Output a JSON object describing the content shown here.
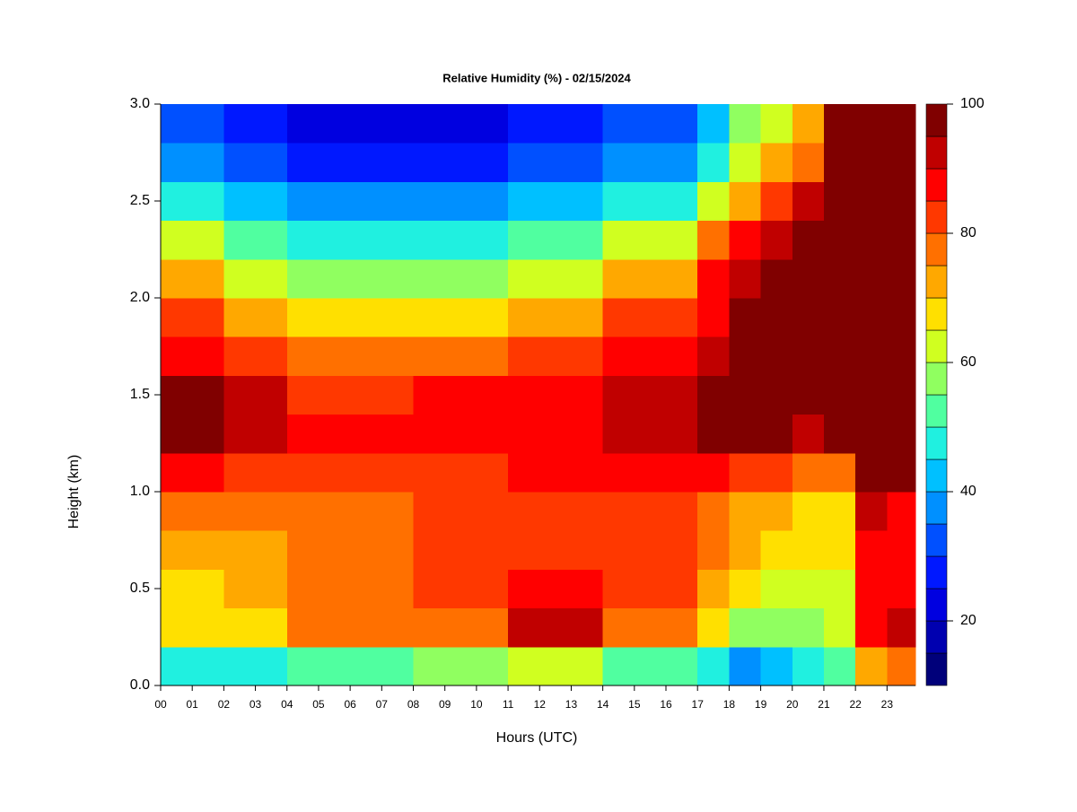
{
  "chart_data": {
    "type": "heatmap",
    "title": "Relative Humidity (%) - 02/15/2024",
    "x_label": "Hours (UTC)",
    "y_label": "Height (km)",
    "xlim": [
      0,
      23.9
    ],
    "ylim": [
      0,
      3
    ],
    "xticks": [
      {
        "value": 0,
        "label": "00"
      },
      {
        "value": 1,
        "label": "01"
      },
      {
        "value": 2,
        "label": "02"
      },
      {
        "value": 3,
        "label": "03"
      },
      {
        "value": 4,
        "label": "04"
      },
      {
        "value": 5,
        "label": "05"
      },
      {
        "value": 6,
        "label": "06"
      },
      {
        "value": 7,
        "label": "07"
      },
      {
        "value": 8,
        "label": "08"
      },
      {
        "value": 9,
        "label": "09"
      },
      {
        "value": 10,
        "label": "10"
      },
      {
        "value": 11,
        "label": "11"
      },
      {
        "value": 12,
        "label": "12"
      },
      {
        "value": 13,
        "label": "13"
      },
      {
        "value": 14,
        "label": "14"
      },
      {
        "value": 15,
        "label": "15"
      },
      {
        "value": 16,
        "label": "16"
      },
      {
        "value": 17,
        "label": "17"
      },
      {
        "value": 18,
        "label": "18"
      },
      {
        "value": 19,
        "label": "19"
      },
      {
        "value": 20,
        "label": "20"
      },
      {
        "value": 21,
        "label": "21"
      },
      {
        "value": 22,
        "label": "22"
      },
      {
        "value": 23,
        "label": "23"
      }
    ],
    "yticks": [
      {
        "value": 0,
        "label": "0.0"
      },
      0.5,
      {
        "value": 1,
        "label": "1.0"
      },
      1.5,
      {
        "value": 2,
        "label": "2.0"
      },
      2.5,
      {
        "value": 3,
        "label": "3.0"
      }
    ],
    "x": [
      0,
      1,
      2,
      3,
      4,
      5,
      6,
      7,
      8,
      9,
      10,
      11,
      12,
      13,
      14,
      15,
      16,
      17,
      18,
      19,
      20,
      21,
      22,
      23
    ],
    "y": [
      0.1,
      0.3,
      0.5,
      0.7,
      0.9,
      1.1,
      1.3,
      1.5,
      1.7,
      1.9,
      2.1,
      2.3,
      2.5,
      2.7,
      2.9
    ],
    "z": [
      [
        45,
        45,
        48,
        48,
        52,
        52,
        52,
        52,
        55,
        55,
        55,
        60,
        60,
        60,
        52,
        52,
        52,
        45,
        38,
        42,
        45,
        50,
        70,
        75
      ],
      [
        65,
        65,
        68,
        68,
        75,
        75,
        75,
        75,
        78,
        78,
        78,
        90,
        90,
        90,
        78,
        78,
        78,
        65,
        58,
        58,
        55,
        60,
        85,
        90
      ],
      [
        68,
        68,
        70,
        70,
        78,
        78,
        78,
        78,
        80,
        80,
        80,
        85,
        85,
        85,
        82,
        82,
        82,
        70,
        65,
        62,
        60,
        62,
        88,
        88
      ],
      [
        70,
        70,
        72,
        72,
        76,
        76,
        76,
        76,
        80,
        80,
        80,
        82,
        82,
        82,
        82,
        82,
        82,
        75,
        70,
        68,
        65,
        65,
        88,
        85
      ],
      [
        75,
        75,
        75,
        75,
        75,
        75,
        75,
        75,
        80,
        80,
        80,
        82,
        82,
        82,
        82,
        82,
        82,
        75,
        72,
        70,
        68,
        68,
        92,
        88
      ],
      [
        85,
        85,
        82,
        82,
        80,
        80,
        80,
        80,
        82,
        82,
        82,
        85,
        85,
        85,
        86,
        86,
        86,
        85,
        82,
        80,
        75,
        75,
        95,
        95
      ],
      [
        95,
        95,
        90,
        90,
        85,
        85,
        85,
        85,
        88,
        88,
        88,
        88,
        88,
        88,
        90,
        90,
        90,
        95,
        95,
        95,
        92,
        98,
        98,
        98
      ],
      [
        95,
        95,
        90,
        90,
        82,
        82,
        82,
        82,
        85,
        85,
        85,
        88,
        88,
        88,
        90,
        90,
        90,
        95,
        98,
        98,
        98,
        98,
        98,
        98
      ],
      [
        88,
        88,
        82,
        82,
        75,
        75,
        75,
        75,
        78,
        78,
        78,
        82,
        82,
        82,
        85,
        85,
        85,
        92,
        98,
        98,
        98,
        98,
        98,
        98
      ],
      [
        80,
        80,
        72,
        72,
        65,
        65,
        65,
        65,
        68,
        68,
        68,
        72,
        72,
        72,
        80,
        80,
        80,
        88,
        95,
        98,
        98,
        98,
        98,
        98
      ],
      [
        70,
        70,
        60,
        60,
        55,
        55,
        55,
        55,
        58,
        58,
        58,
        62,
        62,
        62,
        72,
        72,
        72,
        85,
        92,
        95,
        98,
        98,
        98,
        98
      ],
      [
        60,
        60,
        50,
        50,
        45,
        45,
        45,
        45,
        48,
        48,
        48,
        50,
        50,
        50,
        60,
        60,
        60,
        75,
        85,
        90,
        95,
        98,
        98,
        98
      ],
      [
        45,
        45,
        40,
        40,
        35,
        35,
        35,
        35,
        38,
        38,
        38,
        40,
        40,
        40,
        48,
        48,
        48,
        60,
        72,
        80,
        90,
        98,
        98,
        98
      ],
      [
        35,
        35,
        30,
        30,
        25,
        25,
        25,
        25,
        28,
        28,
        28,
        30,
        30,
        30,
        38,
        38,
        38,
        48,
        60,
        70,
        78,
        98,
        98,
        98
      ],
      [
        30,
        30,
        25,
        25,
        20,
        20,
        20,
        20,
        22,
        22,
        22,
        25,
        25,
        25,
        30,
        30,
        30,
        42,
        55,
        62,
        70,
        98,
        98,
        98
      ]
    ],
    "levels": [
      10,
      15,
      20,
      25,
      30,
      35,
      40,
      45,
      50,
      55,
      60,
      65,
      70,
      75,
      80,
      85,
      90,
      95,
      100
    ],
    "colors": [
      "#00007a",
      "#0000b0",
      "#0000e0",
      "#0018ff",
      "#0050ff",
      "#0090ff",
      "#00c0ff",
      "#20f0e0",
      "#50ffa0",
      "#90ff60",
      "#d0ff20",
      "#ffe000",
      "#ffa800",
      "#ff7000",
      "#ff3800",
      "#ff0000",
      "#c00000",
      "#800000"
    ],
    "clim": [
      10,
      100
    ],
    "cticks": [
      20,
      40,
      60,
      80,
      100
    ]
  }
}
